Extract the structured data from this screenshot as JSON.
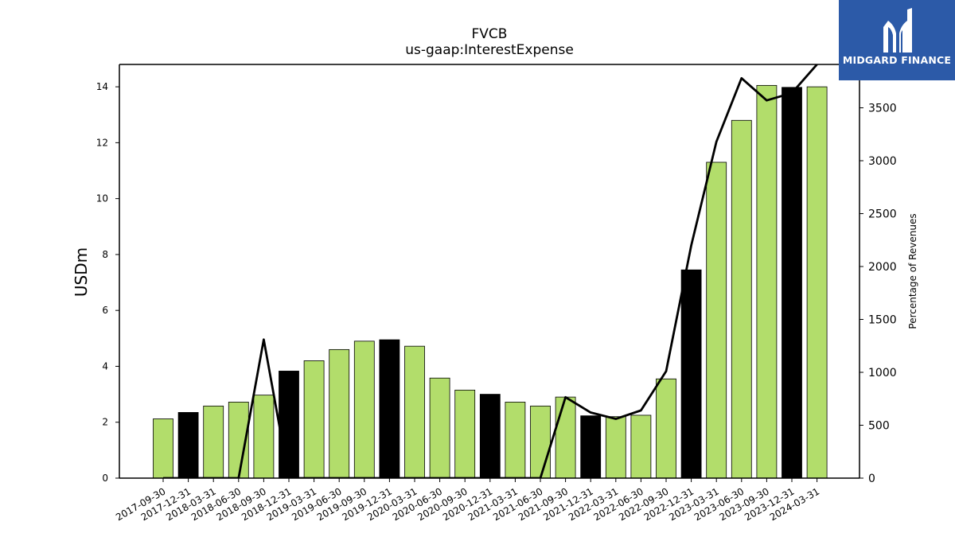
{
  "chart_data": {
    "type": "bar",
    "title": "FVCB",
    "subtitle": "us-gaap:InterestExpense",
    "ylabel": "USDm",
    "y2label": "Percentage of Revenues",
    "categories": [
      "2017-09-30",
      "2017-12-31",
      "2018-03-31",
      "2018-06-30",
      "2018-09-30",
      "2018-12-31",
      "2019-03-31",
      "2019-06-30",
      "2019-09-30",
      "2019-12-31",
      "2020-03-31",
      "2020-06-30",
      "2020-09-30",
      "2020-12-31",
      "2021-03-31",
      "2021-06-30",
      "2021-09-30",
      "2021-12-31",
      "2022-03-31",
      "2022-06-30",
      "2022-09-30",
      "2022-12-31",
      "2023-03-31",
      "2023-06-30",
      "2023-09-30",
      "2023-12-31",
      "2024-03-31"
    ],
    "series": [
      {
        "type": "bar",
        "values": [
          2.12,
          2.35,
          2.58,
          2.72,
          2.97,
          3.83,
          4.2,
          4.6,
          4.9,
          4.95,
          4.72,
          3.58,
          3.15,
          3.0,
          2.72,
          2.58,
          2.9,
          2.23,
          2.2,
          2.25,
          3.55,
          7.45,
          11.3,
          12.8,
          14.05,
          13.98,
          14.0
        ],
        "colors": [
          "#b2dd6b",
          "#000000",
          "#b2dd6b",
          "#b2dd6b",
          "#b2dd6b",
          "#000000",
          "#b2dd6b",
          "#b2dd6b",
          "#b2dd6b",
          "#000000",
          "#b2dd6b",
          "#b2dd6b",
          "#b2dd6b",
          "#000000",
          "#b2dd6b",
          "#b2dd6b",
          "#b2dd6b",
          "#000000",
          "#b2dd6b",
          "#b2dd6b",
          "#b2dd6b",
          "#000000",
          "#b2dd6b",
          "#b2dd6b",
          "#b2dd6b",
          "#000000",
          "#b2dd6b"
        ]
      },
      {
        "type": "line",
        "axis": "right",
        "values": [
          0,
          0,
          0,
          0,
          1310,
          0,
          0,
          0,
          0,
          0,
          0,
          0,
          0,
          0,
          0,
          0,
          765,
          620,
          560,
          640,
          1010,
          2200,
          3180,
          3780,
          3570,
          3640,
          3910
        ]
      }
    ],
    "ylim": [
      0,
      14.8
    ],
    "yticks": [
      0,
      2,
      4,
      6,
      8,
      10,
      12,
      14
    ],
    "y2lim": [
      0,
      3910
    ],
    "y2ticks": [
      0,
      500,
      1000,
      1500,
      2000,
      2500,
      3000,
      3500
    ]
  },
  "logo": {
    "text": "MIDGARD FINANCE",
    "bg_color": "#2c5aa8"
  },
  "colors": {
    "bar_green": "#b2dd6b",
    "bar_black": "#000000",
    "line": "#000000"
  }
}
